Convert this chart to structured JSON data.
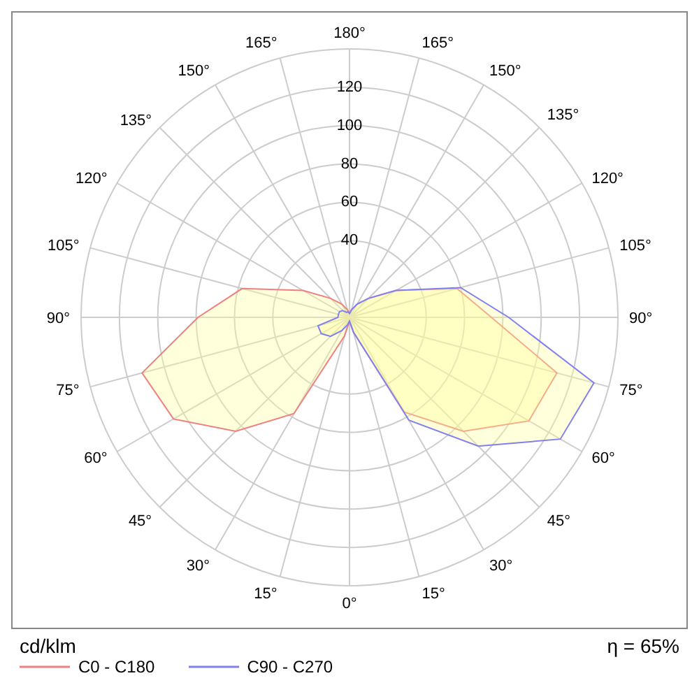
{
  "chart_data": {
    "type": "radar",
    "ylabel": "cd/klm",
    "annotations": [
      "η = 65%"
    ],
    "categories": [
      "180°",
      "165°",
      "150°",
      "135°",
      "120°",
      "105°",
      "90°",
      "75°",
      "60°",
      "45°",
      "30°",
      "15°",
      "0°",
      "15°",
      "30°",
      "45°",
      "60°",
      "75°",
      "90°",
      "105°",
      "120°",
      "135°",
      "150°",
      "165°"
    ],
    "series": [
      {
        "name": "C0 - C180",
        "color": "#f08080",
        "values": [
          2,
          4,
          8,
          14,
          28,
          58,
          74,
          112,
          108,
          84,
          57,
          8,
          2,
          10,
          58,
          84,
          106,
          112,
          79,
          58,
          28,
          14,
          8,
          4
        ]
      },
      {
        "name": "C90 - C270",
        "color": "#8080f0",
        "values": [
          2,
          4,
          8,
          14,
          28,
          60,
          83,
          132,
          127,
          95,
          62,
          8,
          2,
          4,
          8,
          14,
          17,
          17,
          6,
          6,
          6,
          5,
          3,
          3
        ]
      }
    ],
    "ylim": [
      0,
      140
    ],
    "yticks": [
      40,
      60,
      80,
      100,
      120
    ],
    "grid": true,
    "legend": "bottom left"
  }
}
